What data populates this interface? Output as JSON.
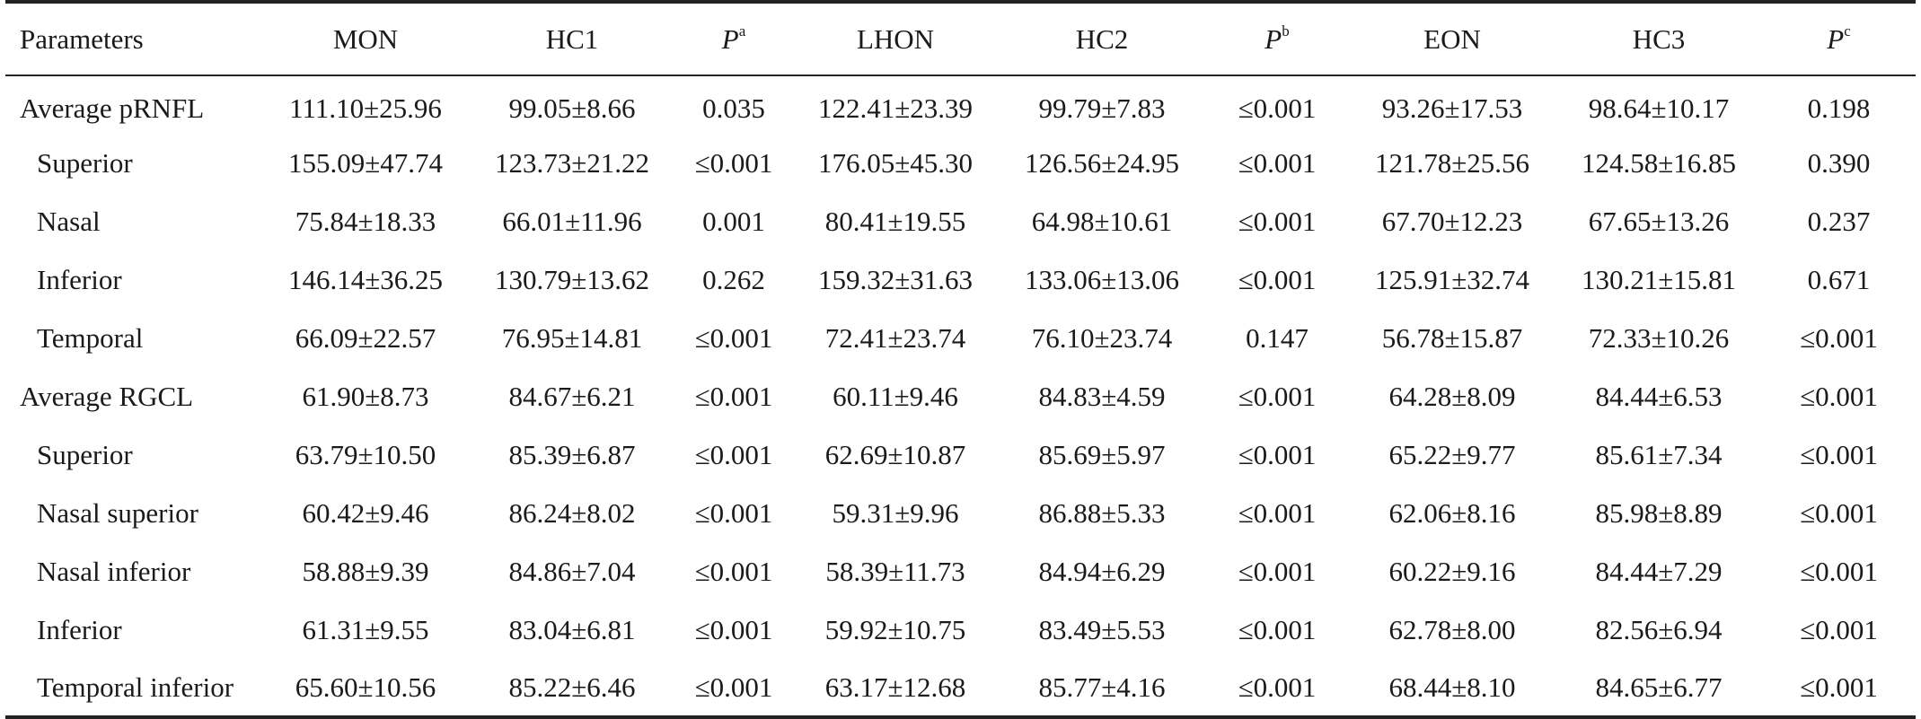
{
  "headers": {
    "parameters": "Parameters",
    "mon": "MON",
    "hc1": "HC1",
    "pa_base": "P",
    "pa_sup": "a",
    "lhon": "LHON",
    "hc2": "HC2",
    "pb_base": "P",
    "pb_sup": "b",
    "eon": "EON",
    "hc3": "HC3",
    "pc_base": "P",
    "pc_sup": "c"
  },
  "rows": [
    {
      "name": "Average pRNFL",
      "mon": "111.10±25.96",
      "hc1": "99.05±8.66",
      "pa": "0.035",
      "lhon": "122.41±23.39",
      "hc2": "99.79±7.83",
      "pb": "≤0.001",
      "eon": "93.26±17.53",
      "hc3": "98.64±10.17",
      "pc": "0.198"
    },
    {
      "name": "Superior",
      "mon": "155.09±47.74",
      "hc1": "123.73±21.22",
      "pa": "≤0.001",
      "lhon": "176.05±45.30",
      "hc2": "126.56±24.95",
      "pb": "≤0.001",
      "eon": "121.78±25.56",
      "hc3": "124.58±16.85",
      "pc": "0.390"
    },
    {
      "name": "Nasal",
      "mon": "75.84±18.33",
      "hc1": "66.01±11.96",
      "pa": "0.001",
      "lhon": "80.41±19.55",
      "hc2": "64.98±10.61",
      "pb": "≤0.001",
      "eon": "67.70±12.23",
      "hc3": "67.65±13.26",
      "pc": "0.237"
    },
    {
      "name": "Inferior",
      "mon": "146.14±36.25",
      "hc1": "130.79±13.62",
      "pa": "0.262",
      "lhon": "159.32±31.63",
      "hc2": "133.06±13.06",
      "pb": "≤0.001",
      "eon": "125.91±32.74",
      "hc3": "130.21±15.81",
      "pc": "0.671"
    },
    {
      "name": "Temporal",
      "mon": "66.09±22.57",
      "hc1": "76.95±14.81",
      "pa": "≤0.001",
      "lhon": "72.41±23.74",
      "hc2": "76.10±23.74",
      "pb": "0.147",
      "eon": "56.78±15.87",
      "hc3": "72.33±10.26",
      "pc": "≤0.001"
    },
    {
      "name": "Average RGCL",
      "mon": "61.90±8.73",
      "hc1": "84.67±6.21",
      "pa": "≤0.001",
      "lhon": "60.11±9.46",
      "hc2": "84.83±4.59",
      "pb": "≤0.001",
      "eon": "64.28±8.09",
      "hc3": "84.44±6.53",
      "pc": "≤0.001"
    },
    {
      "name": "Superior",
      "mon": "63.79±10.50",
      "hc1": "85.39±6.87",
      "pa": "≤0.001",
      "lhon": "62.69±10.87",
      "hc2": "85.69±5.97",
      "pb": "≤0.001",
      "eon": "65.22±9.77",
      "hc3": "85.61±7.34",
      "pc": "≤0.001"
    },
    {
      "name": "Nasal superior",
      "mon": "60.42±9.46",
      "hc1": "86.24±8.02",
      "pa": "≤0.001",
      "lhon": "59.31±9.96",
      "hc2": "86.88±5.33",
      "pb": "≤0.001",
      "eon": "62.06±8.16",
      "hc3": "85.98±8.89",
      "pc": "≤0.001"
    },
    {
      "name": "Nasal inferior",
      "mon": "58.88±9.39",
      "hc1": "84.86±7.04",
      "pa": "≤0.001",
      "lhon": "58.39±11.73",
      "hc2": "84.94±6.29",
      "pb": "≤0.001",
      "eon": "60.22±9.16",
      "hc3": "84.44±7.29",
      "pc": "≤0.001"
    },
    {
      "name": "Inferior",
      "mon": "61.31±9.55",
      "hc1": "83.04±6.81",
      "pa": "≤0.001",
      "lhon": "59.92±10.75",
      "hc2": "83.49±5.53",
      "pb": "≤0.001",
      "eon": "62.78±8.00",
      "hc3": "82.56±6.94",
      "pc": "≤0.001"
    },
    {
      "name": "Temporal inferior",
      "mon": "65.60±10.56",
      "hc1": "85.22±6.46",
      "pa": "≤0.001",
      "lhon": "63.17±12.68",
      "hc2": "85.77±4.16",
      "pb": "≤0.001",
      "eon": "68.44±8.10",
      "hc3": "84.65±6.77",
      "pc": "≤0.001"
    }
  ]
}
